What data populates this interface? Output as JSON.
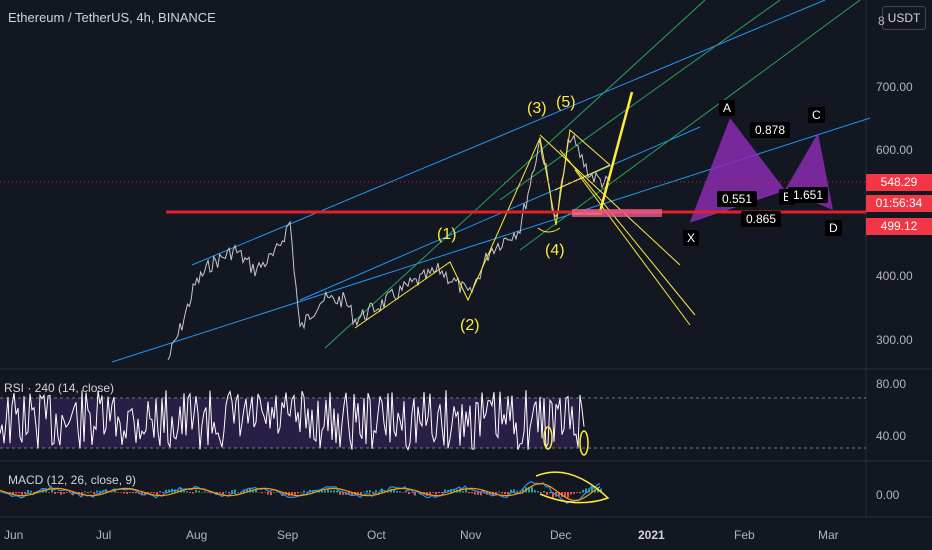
{
  "header": {
    "title": "Ethereum / TetherUS, 4h, BINANCE",
    "currency_button": "USDT",
    "partial_top_label": "8"
  },
  "price_axis": {
    "labels": [
      "700.00",
      "600.00",
      "400.00",
      "300.00"
    ]
  },
  "price_badges": {
    "current": "548.29",
    "countdown": "01:56:34",
    "level": "499.12",
    "current_color": "#f23645",
    "level_color": "#f23645"
  },
  "wave_labels": {
    "w1": "(1)",
    "w2": "(2)",
    "w3": "(3)",
    "w4": "(4)",
    "w5": "(5)"
  },
  "harmonic": {
    "X": "X",
    "A": "A",
    "B": "B",
    "C": "C",
    "D": "D",
    "r1": "0.878",
    "r2": "0.551",
    "r3": "1.651",
    "r4": "0.865"
  },
  "rsi": {
    "label": "RSI · 240 (14, close)",
    "axis": [
      "80.00",
      "40.00"
    ]
  },
  "macd": {
    "label": "MACD (12, 26, close, 9)",
    "axis": [
      "0.00"
    ]
  },
  "time_axis": {
    "labels": [
      "Jun",
      "Jul",
      "Aug",
      "Sep",
      "Oct",
      "Nov",
      "Dec",
      "2021",
      "Feb",
      "Mar"
    ]
  },
  "colors": {
    "background": "#131722",
    "red_line": "#e0202b",
    "purple": "#8a2cb0",
    "yellow": "#ffeb3b",
    "channel_blue": "#2196f3",
    "channel_green": "#26a65b"
  }
}
